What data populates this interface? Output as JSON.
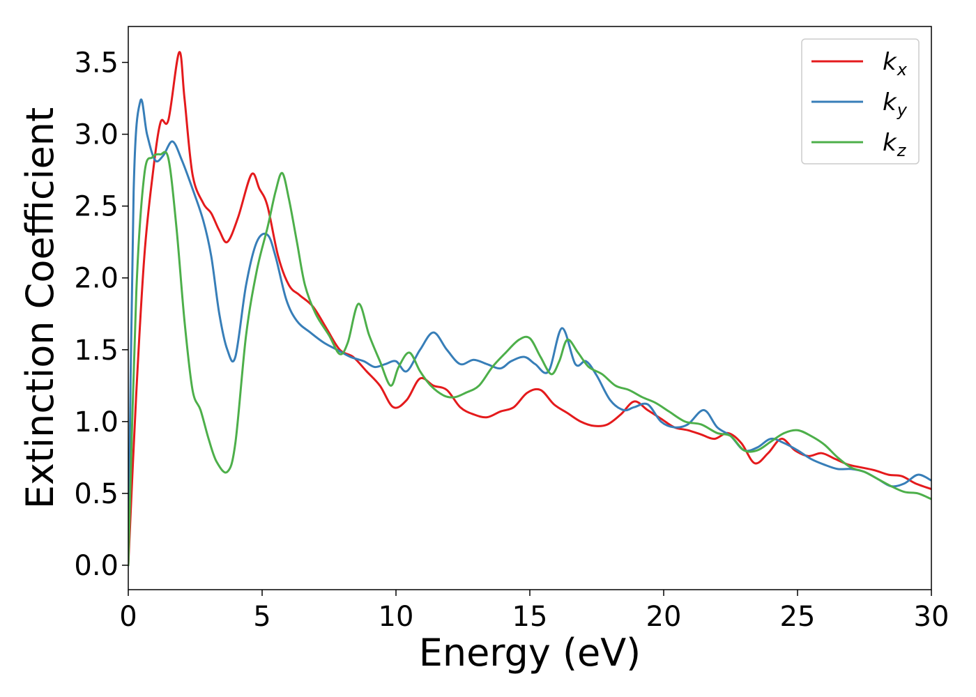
{
  "chart_data": {
    "type": "line",
    "title": "",
    "xlabel": "Energy (eV)",
    "ylabel": "Extinction Coefficient",
    "xlim": [
      0,
      30
    ],
    "ylim": [
      -0.17,
      3.75
    ],
    "xticks": [
      0,
      5,
      10,
      15,
      20,
      25,
      30
    ],
    "yticks": [
      0.0,
      0.5,
      1.0,
      1.5,
      2.0,
      2.5,
      3.0,
      3.5
    ],
    "xtick_labels": [
      "0",
      "5",
      "10",
      "15",
      "20",
      "25",
      "30"
    ],
    "ytick_labels": [
      "0.0",
      "0.5",
      "1.0",
      "1.5",
      "2.0",
      "2.5",
      "3.0",
      "3.5"
    ],
    "grid": false,
    "legend_position": "top-right",
    "series": [
      {
        "name": "k",
        "subscript": "x",
        "color": "#e41a1c",
        "x": [
          0,
          0.3,
          0.6,
          0.9,
          1.2,
          1.5,
          1.9,
          2.1,
          2.4,
          2.8,
          3.1,
          3.4,
          3.7,
          4.1,
          4.6,
          4.9,
          5.2,
          5.6,
          6.0,
          6.4,
          6.9,
          7.4,
          7.9,
          8.4,
          8.9,
          9.4,
          9.9,
          10.4,
          10.9,
          11.4,
          11.9,
          12.4,
          12.9,
          13.4,
          13.9,
          14.4,
          14.9,
          15.4,
          15.9,
          16.4,
          16.9,
          17.4,
          17.9,
          18.4,
          18.9,
          19.4,
          19.9,
          20.4,
          20.9,
          21.4,
          21.9,
          22.4,
          22.9,
          23.4,
          23.9,
          24.4,
          24.9,
          25.4,
          25.9,
          26.4,
          26.9,
          27.4,
          27.9,
          28.4,
          28.9,
          29.4,
          30.0
        ],
        "y": [
          0.0,
          1.2,
          2.15,
          2.7,
          3.08,
          3.1,
          3.57,
          3.25,
          2.72,
          2.52,
          2.45,
          2.33,
          2.25,
          2.42,
          2.72,
          2.62,
          2.5,
          2.15,
          1.95,
          1.88,
          1.8,
          1.65,
          1.5,
          1.45,
          1.35,
          1.25,
          1.1,
          1.15,
          1.3,
          1.25,
          1.22,
          1.1,
          1.05,
          1.03,
          1.07,
          1.1,
          1.2,
          1.22,
          1.12,
          1.06,
          1.0,
          0.97,
          0.98,
          1.05,
          1.14,
          1.08,
          1.02,
          0.96,
          0.94,
          0.91,
          0.88,
          0.92,
          0.85,
          0.71,
          0.78,
          0.88,
          0.8,
          0.76,
          0.78,
          0.74,
          0.7,
          0.68,
          0.66,
          0.63,
          0.62,
          0.57,
          0.53
        ]
      },
      {
        "name": "k",
        "subscript": "y",
        "color": "#377eb8",
        "x": [
          0,
          0.2,
          0.45,
          0.7,
          1.0,
          1.3,
          1.65,
          2.0,
          2.4,
          2.8,
          3.1,
          3.4,
          3.7,
          4.0,
          4.4,
          4.8,
          5.2,
          5.5,
          5.9,
          6.3,
          6.8,
          7.3,
          7.8,
          8.3,
          8.8,
          9.2,
          9.6,
          10.0,
          10.4,
          10.9,
          11.4,
          11.9,
          12.4,
          12.9,
          13.4,
          13.9,
          14.3,
          14.8,
          15.2,
          15.7,
          16.2,
          16.7,
          17.1,
          17.5,
          18.0,
          18.5,
          18.9,
          19.4,
          19.9,
          20.4,
          20.9,
          21.5,
          22.0,
          22.5,
          23.0,
          23.5,
          24.0,
          24.5,
          25.0,
          25.5,
          26.0,
          26.5,
          27.0,
          27.5,
          28.0,
          28.5,
          29.0,
          29.5,
          30.0
        ],
        "y": [
          0.0,
          2.6,
          3.23,
          3.0,
          2.82,
          2.85,
          2.95,
          2.82,
          2.62,
          2.4,
          2.15,
          1.75,
          1.5,
          1.45,
          1.95,
          2.25,
          2.3,
          2.15,
          1.85,
          1.7,
          1.62,
          1.55,
          1.5,
          1.45,
          1.42,
          1.38,
          1.4,
          1.42,
          1.35,
          1.5,
          1.62,
          1.5,
          1.4,
          1.43,
          1.4,
          1.37,
          1.42,
          1.45,
          1.4,
          1.35,
          1.65,
          1.4,
          1.42,
          1.32,
          1.15,
          1.08,
          1.1,
          1.12,
          1.0,
          0.96,
          0.98,
          1.08,
          0.96,
          0.9,
          0.8,
          0.82,
          0.88,
          0.85,
          0.8,
          0.74,
          0.7,
          0.67,
          0.67,
          0.65,
          0.6,
          0.55,
          0.57,
          0.63,
          0.59
        ]
      },
      {
        "name": "k",
        "subscript": "z",
        "color": "#4daf4a",
        "x": [
          0,
          0.3,
          0.6,
          0.9,
          1.2,
          1.5,
          1.8,
          2.1,
          2.4,
          2.7,
          3.0,
          3.3,
          3.7,
          4.0,
          4.4,
          4.8,
          5.2,
          5.5,
          5.75,
          6.0,
          6.3,
          6.6,
          7.0,
          7.5,
          7.9,
          8.2,
          8.6,
          9.0,
          9.4,
          9.8,
          10.1,
          10.5,
          10.9,
          11.3,
          11.8,
          12.2,
          12.6,
          13.1,
          13.6,
          14.1,
          14.6,
          15.0,
          15.4,
          15.8,
          16.1,
          16.4,
          16.8,
          17.2,
          17.7,
          18.2,
          18.7,
          19.2,
          19.7,
          20.2,
          20.8,
          21.4,
          22.0,
          22.5,
          23.0,
          23.5,
          24.0,
          24.5,
          25.0,
          25.5,
          26.0,
          26.5,
          27.0,
          27.5,
          28.0,
          28.5,
          29.0,
          29.5,
          30.0
        ],
        "y": [
          0.0,
          1.9,
          2.72,
          2.84,
          2.86,
          2.83,
          2.35,
          1.7,
          1.22,
          1.08,
          0.88,
          0.72,
          0.65,
          0.85,
          1.6,
          2.05,
          2.35,
          2.6,
          2.73,
          2.55,
          2.25,
          1.95,
          1.75,
          1.6,
          1.47,
          1.55,
          1.82,
          1.6,
          1.42,
          1.25,
          1.38,
          1.48,
          1.35,
          1.25,
          1.18,
          1.17,
          1.2,
          1.25,
          1.38,
          1.48,
          1.57,
          1.58,
          1.45,
          1.33,
          1.42,
          1.57,
          1.48,
          1.38,
          1.33,
          1.25,
          1.22,
          1.17,
          1.13,
          1.07,
          1.0,
          0.98,
          0.92,
          0.9,
          0.8,
          0.8,
          0.86,
          0.92,
          0.94,
          0.9,
          0.84,
          0.75,
          0.68,
          0.65,
          0.6,
          0.55,
          0.51,
          0.5,
          0.46
        ]
      }
    ]
  }
}
